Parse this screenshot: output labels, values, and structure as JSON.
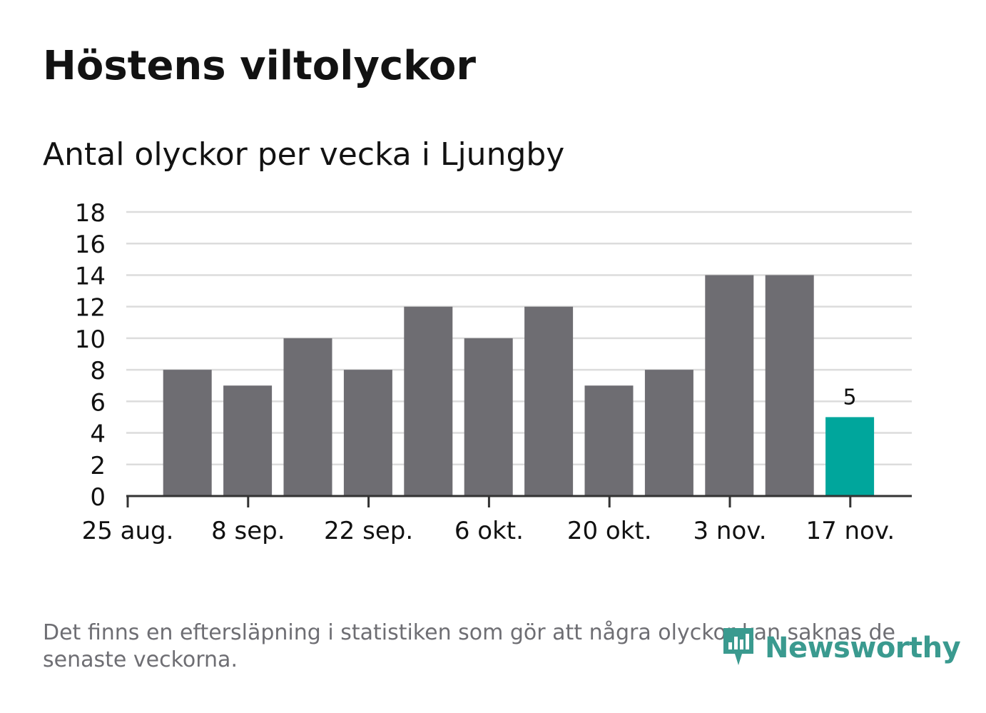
{
  "title": "Höstens viltolyckor",
  "subtitle": "Antal olyckor per vecka i Ljungby",
  "footnote": "Det finns en eftersläpning i statistiken som gör att några olyckor kan saknas de senaste veckorna.",
  "brand": {
    "name": "Newsworthy",
    "icon": "newsworthy-logo-icon",
    "color": "#3a9a8f"
  },
  "colors": {
    "bar": "#6e6d72",
    "highlight": "#00a69c",
    "grid": "#dcdcdc",
    "axis": "#333333",
    "text": "#111111"
  },
  "chart_data": {
    "type": "bar",
    "x": [
      "2019-09-01",
      "2019-09-08",
      "2019-09-15",
      "2019-09-22",
      "2019-09-29",
      "2019-10-06",
      "2019-10-13",
      "2019-10-20",
      "2019-10-27",
      "2019-11-03",
      "2019-11-10",
      "2019-11-17"
    ],
    "values": [
      8,
      7,
      10,
      8,
      12,
      10,
      12,
      7,
      8,
      14,
      14,
      5
    ],
    "highlight_index": 11,
    "data_labels": [
      {
        "index": 11,
        "text": "5"
      }
    ],
    "x_ticks": [
      "25 aug.",
      "8 sep.",
      "22 sep.",
      "6 okt.",
      "20 okt.",
      "3 nov.",
      "17 nov."
    ],
    "y_ticks": [
      "0",
      "2",
      "4",
      "6",
      "8",
      "10",
      "12",
      "14",
      "16",
      "18"
    ],
    "ylim": [
      0,
      18
    ],
    "grid": true,
    "legend": "none",
    "title": "Höstens viltolyckor",
    "subtitle": "Antal olyckor per vecka i Ljungby"
  }
}
